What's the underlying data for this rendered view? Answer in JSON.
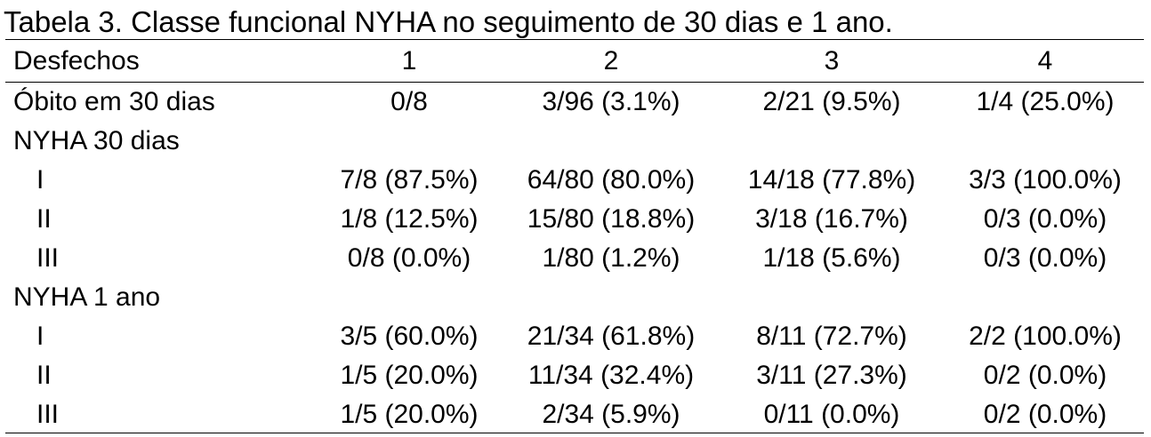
{
  "title": "Tabela 3. Classe funcional NYHA no seguimento de 30 dias e 1 ano.",
  "table": {
    "header": [
      "Desfechos",
      "1",
      "2",
      "3",
      "4"
    ],
    "rows": [
      [
        "Óbito em 30 dias",
        "0/8",
        "3/96 (3.1%)",
        "2/21 (9.5%)",
        "1/4 (25.0%)"
      ],
      [
        "NYHA 30 dias"
      ],
      [
        "I",
        "7/8 (87.5%)",
        "64/80 (80.0%)",
        "14/18 (77.8%)",
        "3/3 (100.0%)"
      ],
      [
        "II",
        "1/8 (12.5%)",
        "15/80 (18.8%)",
        "3/18 (16.7%)",
        "0/3 (0.0%)"
      ],
      [
        "III",
        "0/8 (0.0%)",
        "1/80 (1.2%)",
        "1/18 (5.6%)",
        "0/3 (0.0%)"
      ],
      [
        "NYHA 1 ano"
      ],
      [
        "I",
        "3/5 (60.0%)",
        "21/34 (61.8%)",
        "8/11 (72.7%)",
        "2/2 (100.0%)"
      ],
      [
        "II",
        "1/5 (20.0%)",
        "11/34 (32.4%)",
        "3/11 (27.3%)",
        "0/2 (0.0%)"
      ],
      [
        "III",
        "1/5 (20.0%)",
        "2/34 (5.9%)",
        "0/11 (0.0%)",
        "0/2 (0.0%)"
      ]
    ]
  }
}
